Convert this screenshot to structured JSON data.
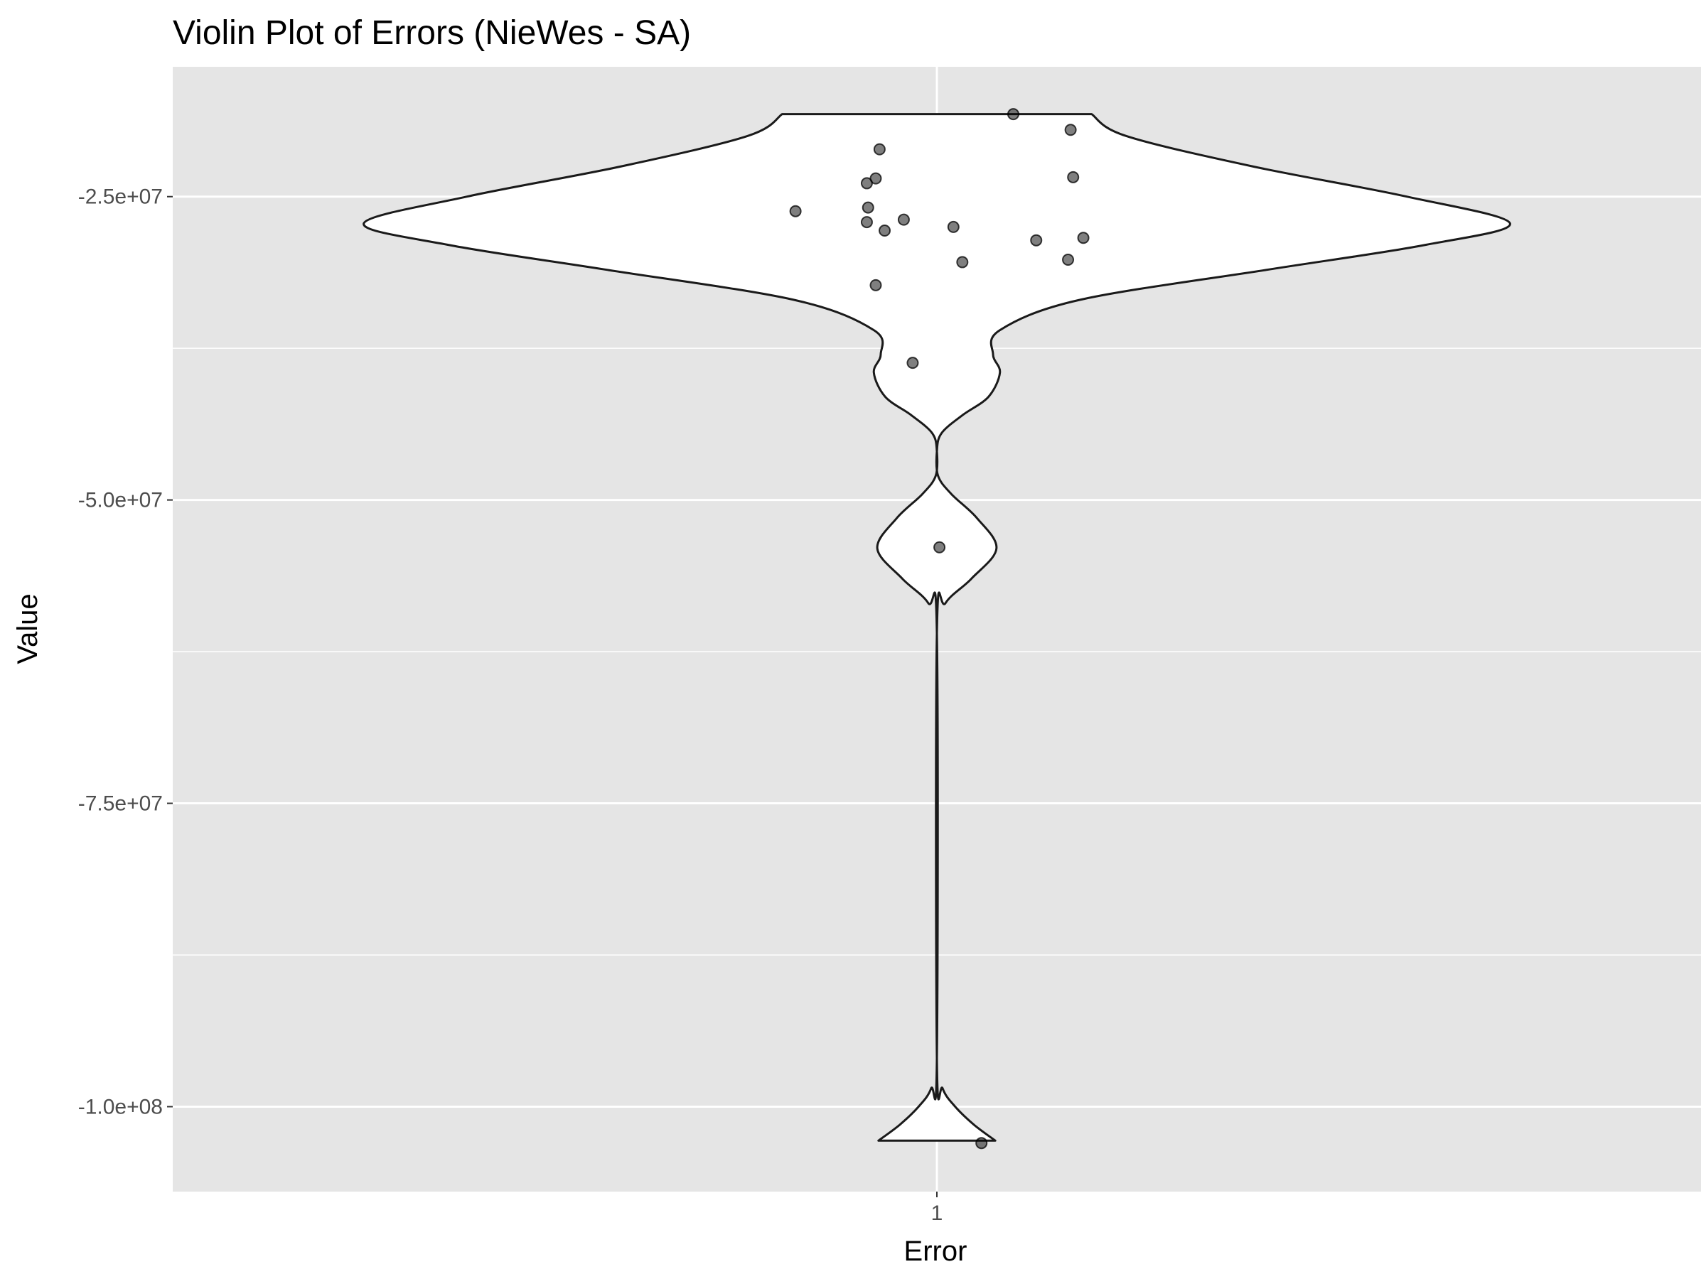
{
  "chart_data": {
    "type": "violin",
    "title": "Violin Plot of Errors (NieWes - SA)",
    "xlabel": "Error",
    "ylabel": "Value",
    "categories": [
      "1"
    ],
    "ylim": [
      -107000000.0,
      -14300000.0
    ],
    "yticks": [
      {
        "value": -25000000.0,
        "label": "-2.5e+07"
      },
      {
        "value": -50000000.0,
        "label": "-5.0e+07"
      },
      {
        "value": -75000000.0,
        "label": "-7.5e+07"
      },
      {
        "value": -100000000.0,
        "label": "-1.0e+08"
      }
    ],
    "minor_yticks": [
      -37500000.0,
      -62500000.0,
      -87500000.0
    ],
    "grid": true,
    "colors": {
      "panel": "#e5e5e5",
      "grid": "#ffffff",
      "violin_fill": "#ffffff",
      "violin_stroke": "#1a1a1a",
      "points": "#000000",
      "tick": "#333333"
    },
    "violin_density": [
      {
        "y": -102800000.0,
        "w": 0.102
      },
      {
        "y": -101500000.0,
        "w": 0.065
      },
      {
        "y": -100000000.0,
        "w": 0.032
      },
      {
        "y": -98500000.0,
        "w": 0.01
      },
      {
        "y": -96000000.0,
        "w": 0.0
      },
      {
        "y": -61000000.0,
        "w": 0.0
      },
      {
        "y": -58500000.0,
        "w": 0.015
      },
      {
        "y": -56500000.0,
        "w": 0.06
      },
      {
        "y": -54000000.0,
        "w": 0.104
      },
      {
        "y": -51500000.0,
        "w": 0.07
      },
      {
        "y": -49500000.0,
        "w": 0.025
      },
      {
        "y": -48000000.0,
        "w": 0.002
      },
      {
        "y": -46000000.0,
        "w": 0.0
      },
      {
        "y": -44500000.0,
        "w": 0.008
      },
      {
        "y": -43000000.0,
        "w": 0.045
      },
      {
        "y": -41500000.0,
        "w": 0.09
      },
      {
        "y": -39500000.0,
        "w": 0.11
      },
      {
        "y": -38000000.0,
        "w": 0.098
      },
      {
        "y": -36000000.0,
        "w": 0.11
      },
      {
        "y": -33500000.0,
        "w": 0.25
      },
      {
        "y": -31000000.0,
        "w": 0.58
      },
      {
        "y": -29000000.0,
        "w": 0.85
      },
      {
        "y": -27200000.0,
        "w": 1.0
      },
      {
        "y": -25000000.0,
        "w": 0.82
      },
      {
        "y": -22500000.0,
        "w": 0.55
      },
      {
        "y": -20000000.0,
        "w": 0.33
      },
      {
        "y": -18200000.0,
        "w": 0.27
      }
    ],
    "points": [
      {
        "x": 0.06,
        "y": -18200000.0
      },
      {
        "x": 0.105,
        "y": -19500000.0
      },
      {
        "x": -0.045,
        "y": -21100000.0
      },
      {
        "x": -0.048,
        "y": -23500000.0
      },
      {
        "x": -0.055,
        "y": -23900000.0
      },
      {
        "x": 0.107,
        "y": -23400000.0
      },
      {
        "x": -0.111,
        "y": -26200000.0
      },
      {
        "x": -0.054,
        "y": -25900000.0
      },
      {
        "x": -0.055,
        "y": -27100000.0
      },
      {
        "x": -0.026,
        "y": -26900000.0
      },
      {
        "x": -0.041,
        "y": -27800000.0
      },
      {
        "x": 0.013,
        "y": -27500000.0
      },
      {
        "x": 0.078,
        "y": -28600000.0
      },
      {
        "x": 0.115,
        "y": -28400000.0
      },
      {
        "x": 0.103,
        "y": -30200000.0
      },
      {
        "x": 0.02,
        "y": -30400000.0
      },
      {
        "x": -0.048,
        "y": -32300000.0
      },
      {
        "x": -0.019,
        "y": -38700000.0
      },
      {
        "x": 0.002,
        "y": -53900000.0
      },
      {
        "x": 0.035,
        "y": -103000000.0
      }
    ]
  }
}
